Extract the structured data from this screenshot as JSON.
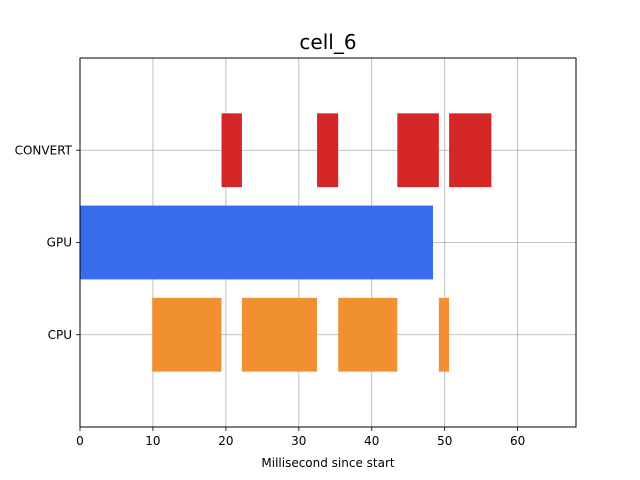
{
  "chart_data": {
    "type": "bar",
    "orientation": "horizontal",
    "title": "cell_6",
    "xlabel": "Millisecond since start",
    "ylabel": "",
    "xlim": [
      0,
      68
    ],
    "ylim": [
      -1,
      3
    ],
    "xticks": [
      0,
      10,
      20,
      30,
      40,
      50,
      60
    ],
    "categories": [
      "CPU",
      "GPU",
      "CONVERT"
    ],
    "grid": true,
    "series": [
      {
        "category": "CPU",
        "color": "#f09030",
        "segments": [
          {
            "start": 9.9,
            "end": 19.4
          },
          {
            "start": 22.2,
            "end": 32.5
          },
          {
            "start": 35.4,
            "end": 43.5
          },
          {
            "start": 49.2,
            "end": 50.6
          }
        ]
      },
      {
        "category": "GPU",
        "color": "#376ded",
        "segments": [
          {
            "start": 0.0,
            "end": 48.4
          }
        ]
      },
      {
        "category": "CONVERT",
        "color": "#d62728",
        "segments": [
          {
            "start": 19.4,
            "end": 22.2
          },
          {
            "start": 32.5,
            "end": 35.4
          },
          {
            "start": 43.5,
            "end": 49.2
          },
          {
            "start": 50.6,
            "end": 56.4
          }
        ]
      }
    ]
  }
}
